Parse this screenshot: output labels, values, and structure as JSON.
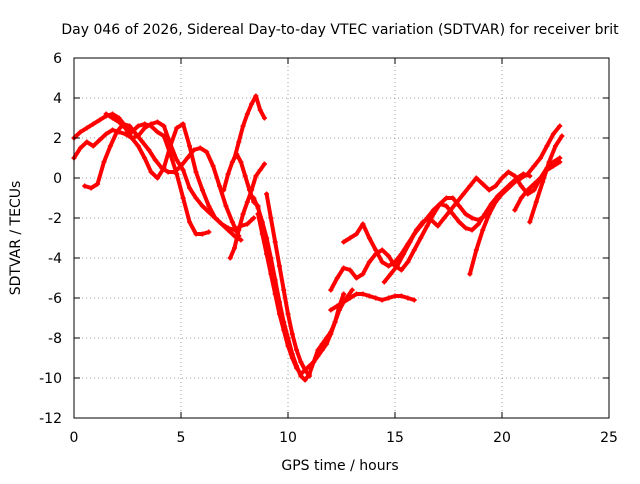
{
  "chart_data": {
    "type": "scatter",
    "title": "Day 046 of 2026, Sidereal Day-to-day VTEC variation (SDTVAR) for receiver brit",
    "xlabel": "GPS time / hours",
    "ylabel": "SDTVAR / TECUs",
    "xlim": [
      0,
      25
    ],
    "ylim": [
      -12,
      6
    ],
    "x_ticks": [
      0,
      5,
      10,
      15,
      20,
      25
    ],
    "y_ticks": [
      -12,
      -10,
      -8,
      -6,
      -4,
      -2,
      0,
      2,
      4,
      6
    ],
    "grid": true,
    "marker": "+",
    "colors": {
      "series": "#ff0000",
      "grid": "#a0a0a0",
      "axis": "#000000"
    },
    "series": [
      {
        "x": [
          0.0,
          0.3,
          0.6,
          0.9,
          1.2,
          1.5,
          1.8,
          2.1,
          2.4,
          2.7,
          3.0,
          3.3,
          3.6,
          3.9,
          4.2,
          4.5,
          4.8,
          5.1,
          5.4,
          5.7,
          6.0,
          6.3
        ],
        "y": [
          2.0,
          2.3,
          2.5,
          2.7,
          2.9,
          3.1,
          3.2,
          3.0,
          2.6,
          2.3,
          2.6,
          2.7,
          2.6,
          2.3,
          2.1,
          1.2,
          0.2,
          -1.0,
          -2.2,
          -2.8,
          -2.8,
          -2.7
        ]
      },
      {
        "x": [
          0.0,
          0.3,
          0.6,
          0.9,
          1.2,
          1.5,
          1.8,
          2.1,
          2.4,
          2.7,
          3.0,
          3.3,
          3.6,
          3.9,
          4.2,
          4.5,
          4.8,
          5.1,
          5.4,
          5.7,
          6.0,
          6.3,
          6.6,
          6.9,
          7.2,
          7.5,
          7.8
        ],
        "y": [
          1.0,
          1.5,
          1.8,
          1.6,
          1.9,
          2.2,
          2.4,
          2.3,
          2.2,
          2.0,
          2.1,
          2.5,
          2.7,
          2.8,
          2.6,
          1.7,
          0.9,
          0.4,
          -0.5,
          -1.0,
          -1.4,
          -1.7,
          -2.0,
          -2.3,
          -2.6,
          -2.9,
          -3.1
        ]
      },
      {
        "x": [
          0.5,
          0.8,
          1.1,
          1.4,
          1.7,
          2.0,
          2.3,
          2.6,
          2.9,
          3.2,
          3.5,
          3.8,
          4.1,
          4.4,
          4.7,
          5.0,
          5.3,
          5.6,
          5.9,
          6.2,
          6.5,
          6.8,
          7.1,
          7.4,
          7.7
        ],
        "y": [
          -0.4,
          -0.5,
          -0.3,
          0.8,
          1.6,
          2.3,
          2.7,
          2.6,
          2.2,
          1.8,
          1.4,
          0.9,
          0.5,
          0.3,
          0.3,
          0.6,
          1.0,
          1.4,
          1.5,
          1.3,
          0.6,
          -0.4,
          -1.4,
          -2.2,
          -2.9
        ]
      },
      {
        "x": [
          1.5,
          1.8,
          2.1,
          2.4,
          2.7,
          3.0,
          3.3,
          3.6,
          3.9,
          4.2,
          4.5,
          4.8,
          5.1,
          5.4,
          5.7,
          6.0,
          6.3,
          6.6,
          6.9,
          7.2,
          7.5,
          7.8,
          8.1,
          8.4
        ],
        "y": [
          3.2,
          3.0,
          2.8,
          2.5,
          2.0,
          1.6,
          1.0,
          0.3,
          0.0,
          0.5,
          1.6,
          2.5,
          2.7,
          1.6,
          0.3,
          -0.6,
          -1.4,
          -2.0,
          -2.3,
          -2.5,
          -2.6,
          -2.4,
          -2.3,
          -2.0
        ]
      },
      {
        "x": [
          7.3,
          7.5,
          7.7,
          7.9,
          8.1,
          8.3,
          8.5,
          8.7,
          8.9
        ],
        "y": [
          -4.0,
          -3.5,
          -2.6,
          -1.8,
          -1.2,
          -0.6,
          0.1,
          0.4,
          0.7
        ]
      },
      {
        "x": [
          7.5,
          7.7,
          7.9,
          8.1,
          8.3,
          8.5,
          8.7,
          8.9
        ],
        "y": [
          1.0,
          1.8,
          2.6,
          3.2,
          3.7,
          4.1,
          3.4,
          3.0
        ]
      },
      {
        "x": [
          7.0,
          7.2,
          7.4,
          7.6,
          7.8,
          8.0,
          8.2,
          8.4,
          8.6
        ],
        "y": [
          -0.6,
          0.2,
          0.8,
          1.2,
          0.8,
          0.1,
          -0.6,
          -1.2,
          -1.4
        ]
      },
      {
        "x": [
          8.4,
          8.6,
          8.8,
          9.0,
          9.2,
          9.4,
          9.6,
          9.8,
          10.0,
          10.2,
          10.4,
          10.6,
          10.8,
          11.0,
          11.2,
          11.4,
          11.6,
          11.8,
          12.0,
          12.2,
          12.4,
          12.6
        ],
        "y": [
          -1.0,
          -1.5,
          -2.2,
          -3.0,
          -4.0,
          -5.1,
          -6.2,
          -7.2,
          -8.0,
          -8.8,
          -9.4,
          -9.9,
          -10.1,
          -9.8,
          -9.2,
          -8.6,
          -8.3,
          -8.0,
          -7.7,
          -7.2,
          -6.4,
          -5.8
        ]
      },
      {
        "x": [
          8.6,
          8.8,
          9.0,
          9.2,
          9.4,
          9.6,
          9.8,
          10.0,
          10.2,
          10.4,
          10.6,
          10.8,
          11.0,
          11.2,
          11.4,
          11.6,
          11.8,
          12.0,
          12.2,
          12.4,
          12.6,
          12.8,
          13.0
        ],
        "y": [
          -1.8,
          -2.8,
          -3.8,
          -4.8,
          -5.8,
          -6.8,
          -7.6,
          -8.4,
          -9.0,
          -9.5,
          -9.8,
          -9.6,
          -9.4,
          -9.2,
          -8.9,
          -8.6,
          -8.3,
          -7.8,
          -7.2,
          -6.6,
          -6.2,
          -5.9,
          -5.6
        ]
      },
      {
        "x": [
          9.0,
          9.2,
          9.4,
          9.6,
          9.8,
          10.0,
          10.2,
          10.4,
          10.6,
          10.8,
          11.0
        ],
        "y": [
          -0.8,
          -2.0,
          -3.2,
          -4.4,
          -5.6,
          -6.8,
          -7.8,
          -8.6,
          -9.2,
          -9.6,
          -9.9
        ]
      },
      {
        "x": [
          12.0,
          12.3,
          12.6,
          12.9,
          13.2,
          13.5,
          13.8,
          14.1,
          14.4,
          14.7,
          15.0,
          15.3,
          15.6,
          15.9
        ],
        "y": [
          -6.6,
          -6.4,
          -6.2,
          -6.0,
          -5.8,
          -5.8,
          -5.9,
          -6.0,
          -6.1,
          -6.0,
          -5.9,
          -5.9,
          -6.0,
          -6.1
        ]
      },
      {
        "x": [
          12.6,
          12.9,
          13.2,
          13.5,
          13.8,
          14.1,
          14.4,
          14.7,
          15.0,
          15.3,
          15.6,
          15.9,
          16.2,
          16.5,
          16.8,
          17.1,
          17.4,
          17.7,
          18.0,
          18.3,
          18.6,
          18.9,
          19.2,
          19.5,
          19.8,
          20.1,
          20.4,
          20.7
        ],
        "y": [
          -3.2,
          -3.0,
          -2.8,
          -2.3,
          -3.0,
          -3.6,
          -4.2,
          -4.4,
          -4.2,
          -3.8,
          -3.3,
          -2.8,
          -2.4,
          -2.0,
          -1.6,
          -1.3,
          -1.4,
          -1.8,
          -2.2,
          -2.5,
          -2.6,
          -2.3,
          -1.8,
          -1.3,
          -0.9,
          -0.6,
          -0.3,
          -0.1
        ]
      },
      {
        "x": [
          12.0,
          12.3,
          12.6,
          12.9,
          13.2,
          13.5,
          13.8,
          14.1,
          14.4,
          14.7,
          15.0,
          15.3,
          15.6,
          15.9,
          16.2,
          16.5,
          16.8,
          17.1,
          17.4,
          17.7,
          18.0,
          18.3,
          18.6,
          18.9,
          19.2,
          19.5,
          19.8,
          20.1,
          20.4,
          20.7,
          21.0,
          21.3
        ],
        "y": [
          -5.6,
          -5.0,
          -4.5,
          -4.6,
          -5.0,
          -4.8,
          -4.2,
          -3.8,
          -3.6,
          -3.9,
          -4.4,
          -4.6,
          -4.2,
          -3.6,
          -3.0,
          -2.4,
          -1.8,
          -1.3,
          -1.0,
          -1.0,
          -1.4,
          -1.8,
          -2.0,
          -2.1,
          -1.9,
          -1.5,
          -1.0,
          -0.6,
          -0.3,
          0.0,
          0.2,
          0.1
        ]
      },
      {
        "x": [
          17.0,
          17.3,
          17.6,
          17.9,
          18.2,
          18.5,
          18.8,
          19.1,
          19.4,
          19.7,
          20.0,
          20.3,
          20.6,
          20.9,
          21.2,
          21.5,
          21.8,
          22.1,
          22.4,
          22.7
        ],
        "y": [
          -2.4,
          -2.0,
          -1.6,
          -1.2,
          -0.8,
          -0.4,
          0.0,
          -0.3,
          -0.6,
          -0.4,
          0.0,
          0.3,
          0.1,
          -0.4,
          -0.8,
          -0.6,
          0.0,
          0.5,
          0.8,
          1.0
        ]
      },
      {
        "x": [
          18.5,
          18.8,
          19.1,
          19.4,
          19.7,
          20.0,
          20.3,
          20.6,
          20.9,
          21.2,
          21.5,
          21.8,
          22.1,
          22.4,
          22.7
        ],
        "y": [
          -4.8,
          -3.6,
          -2.6,
          -1.8,
          -1.2,
          -0.8,
          -0.5,
          -0.2,
          0.0,
          0.2,
          0.6,
          1.0,
          1.6,
          2.2,
          2.6
        ]
      },
      {
        "x": [
          21.3,
          21.6,
          21.9,
          22.2,
          22.5,
          22.8
        ],
        "y": [
          -2.2,
          -1.2,
          -0.2,
          0.8,
          1.6,
          2.1
        ]
      },
      {
        "x": [
          20.6,
          20.9,
          21.2,
          21.5,
          21.8,
          22.1,
          22.4,
          22.7
        ],
        "y": [
          -1.6,
          -1.0,
          -0.6,
          -0.3,
          0.0,
          0.4,
          0.6,
          0.8
        ]
      },
      {
        "x": [
          14.5,
          14.8,
          15.1,
          15.4,
          15.7,
          16.0,
          16.3,
          16.6,
          16.9
        ],
        "y": [
          -5.2,
          -4.8,
          -4.4,
          -3.8,
          -3.2,
          -2.6,
          -2.2,
          -2.0,
          -2.3
        ]
      }
    ]
  }
}
